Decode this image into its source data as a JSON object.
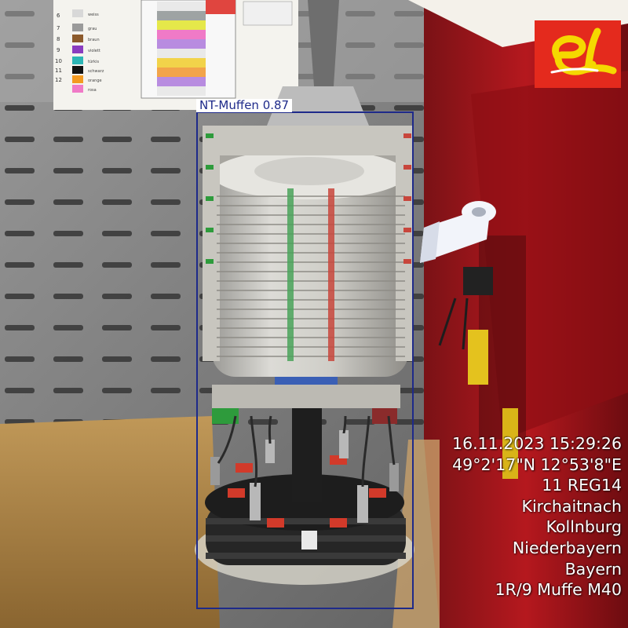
{
  "detection": {
    "label": "NT-Muffen 0.87"
  },
  "logo": {
    "name": "el-logo",
    "bg_color": "#e42a1d",
    "fg_color": "#f5d800"
  },
  "stamp": {
    "lines": [
      "16.11.2023 15:29:26",
      "49°2'17\"N 12°53'8\"E",
      "11 REG14",
      "Kirchaitnach",
      "Kollnburg",
      "Niederbayern",
      "Bayern",
      "1R/9 Muffe M40"
    ]
  },
  "color_sheet": {
    "numbers": [
      "6",
      "7",
      "8",
      "9",
      "10",
      "11",
      "12"
    ],
    "colors": [
      "weiss",
      "grau",
      "braun",
      "violett",
      "türkis",
      "schwarz",
      "orange",
      "rosa"
    ]
  }
}
